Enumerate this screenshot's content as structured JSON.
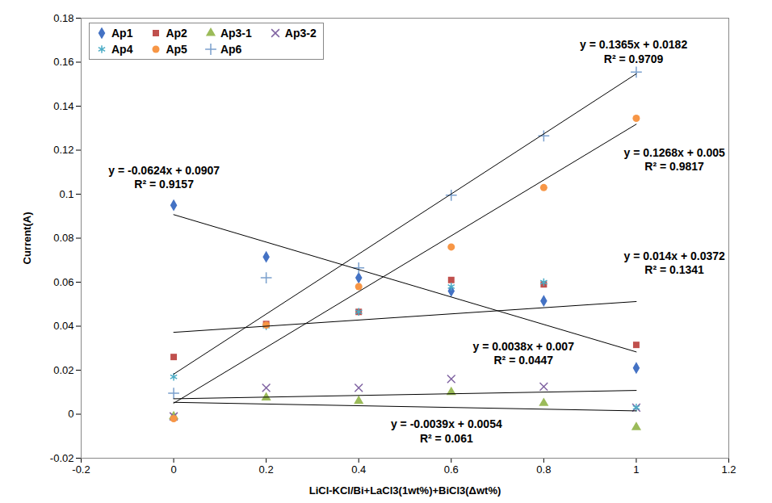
{
  "chart_data": {
    "type": "scatter",
    "x_label": "LiCl-KCl/Bi+LaCl3(1wt%)+BiCl3(Δwt%)",
    "y_label": "Current(A)",
    "x": [
      0,
      0.2,
      0.4,
      0.6,
      0.8,
      1
    ],
    "xlim": [
      -0.2,
      1.2
    ],
    "xticks": [
      -0.2,
      0,
      0.2,
      0.4,
      0.6,
      0.8,
      1,
      1.2
    ],
    "ylim": [
      -0.02,
      0.18
    ],
    "yticks": [
      -0.02,
      0,
      0.02,
      0.04,
      0.06,
      0.08,
      0.1,
      0.12,
      0.14,
      0.16,
      0.18
    ],
    "grid": false,
    "legend": "top-left",
    "series": [
      {
        "name": "Ap1",
        "color": "#4472c4",
        "marker": "diamond",
        "values": [
          0.095,
          0.0715,
          0.062,
          0.056,
          0.0515,
          0.021
        ],
        "trendline": {
          "slope": -0.0624,
          "intercept": 0.0907,
          "equation": "y = -0.0624x + 0.0907",
          "r_squared": "R² = 0.9157"
        }
      },
      {
        "name": "Ap2",
        "color": "#c0504d",
        "marker": "square",
        "values": [
          0.026,
          0.041,
          0.0465,
          0.061,
          0.059,
          0.0315
        ],
        "trendline": {
          "slope": 0.014,
          "intercept": 0.0372,
          "equation": "y = 0.014x + 0.0372",
          "r_squared": "R² = 0.1341"
        }
      },
      {
        "name": "Ap3-1",
        "color": "#9bbb59",
        "marker": "triangle",
        "values": [
          -0.001,
          0.0075,
          0.006,
          0.01,
          0.005,
          -0.006
        ],
        "trendline": {
          "slope": -0.0039,
          "intercept": 0.0054,
          "equation": "y = -0.0039x + 0.0054",
          "r_squared": "R² = 0.061"
        }
      },
      {
        "name": "Ap3-2",
        "color": "#8064a2",
        "marker": "x",
        "values": [
          -0.001,
          0.012,
          0.012,
          0.016,
          0.0125,
          0.003
        ],
        "trendline": {
          "slope": 0.0038,
          "intercept": 0.007,
          "equation": "y = 0.0038x + 0.007",
          "r_squared": "R² = 0.0447"
        }
      },
      {
        "name": "Ap4",
        "color": "#4bacc6",
        "marker": "asterisk",
        "values": [
          0.017,
          0.04,
          0.0465,
          0.058,
          0.06,
          0.003
        ]
      },
      {
        "name": "Ap5",
        "color": "#f79646",
        "marker": "circle",
        "values": [
          -0.002,
          0.0405,
          0.058,
          0.076,
          0.103,
          0.1345
        ],
        "trendline": {
          "slope": 0.1268,
          "intercept": 0.005,
          "equation": "y = 0.1268x + 0.005",
          "r_squared": "R² = 0.9817"
        }
      },
      {
        "name": "Ap6",
        "color": "#7ba0cd",
        "marker": "plus",
        "values": [
          0.0095,
          0.062,
          0.0665,
          0.0995,
          0.1265,
          0.1555
        ],
        "trendline": {
          "slope": 0.1365,
          "intercept": 0.0182,
          "equation": "y = 0.1365x + 0.0182",
          "r_squared": "R² = 0.9709"
        }
      }
    ]
  }
}
